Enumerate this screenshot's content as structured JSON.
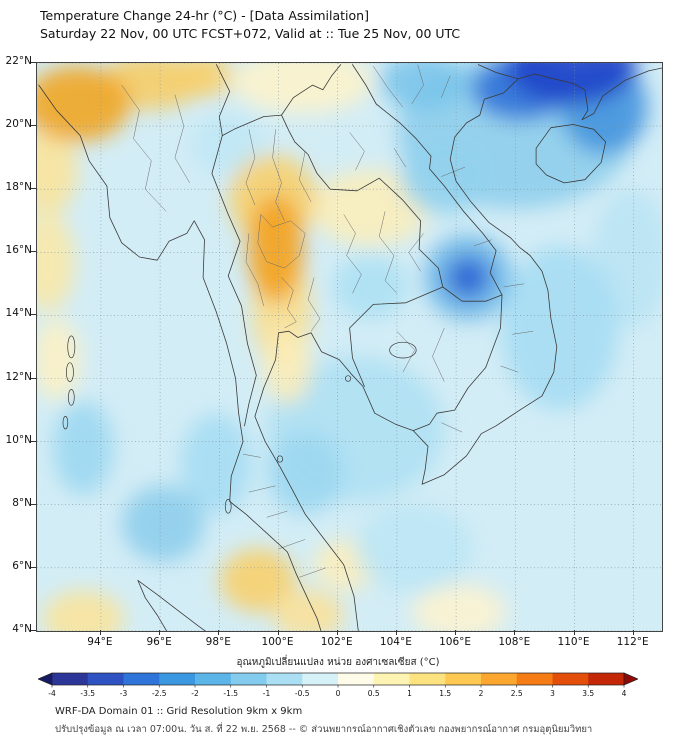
{
  "header": {
    "title": "Temperature Change 24-hr (°C) - [Data Assimilation]",
    "subtitle": "Saturday 22 Nov, 00 UTC FCST+072, Valid at :: Tue 25 Nov, 00 UTC"
  },
  "map": {
    "lat_tick_labels": [
      "22°N",
      "20°N",
      "18°N",
      "16°N",
      "14°N",
      "12°N",
      "10°N",
      "8°N",
      "6°N",
      "4°N"
    ],
    "lon_tick_labels": [
      "94°E",
      "96°E",
      "98°E",
      "100°E",
      "102°E",
      "104°E",
      "106°E",
      "108°E",
      "110°E",
      "112°E"
    ],
    "base_color": "#d3edf6",
    "anomalies": [
      {
        "lon": 100.8,
        "lat": 21.4,
        "rx": 2.4,
        "ry": 1.0,
        "color": "#fdf2cb"
      },
      {
        "lon": 103.1,
        "lat": 17.4,
        "rx": 2.0,
        "ry": 1.2,
        "color": "#fceeb9"
      },
      {
        "lon": 92.2,
        "lat": 18.6,
        "rx": 1.0,
        "ry": 1.4,
        "color": "#fbe49a"
      },
      {
        "lon": 92.2,
        "lat": 15.7,
        "rx": 0.9,
        "ry": 1.6,
        "color": "#fbe8a6"
      },
      {
        "lon": 92.5,
        "lat": 12.6,
        "rx": 0.8,
        "ry": 1.3,
        "color": "#fdf0c4"
      },
      {
        "lon": 93.4,
        "lat": 4.4,
        "rx": 1.4,
        "ry": 0.9,
        "color": "#fbe49a"
      },
      {
        "lon": 106.1,
        "lat": 4.6,
        "rx": 1.6,
        "ry": 0.9,
        "color": "#fdf3cf"
      },
      {
        "lon": 102.3,
        "lat": 6.1,
        "rx": 1.1,
        "ry": 0.8,
        "color": "#fdeeb9"
      },
      {
        "lon": 104.6,
        "lat": 6.6,
        "rx": 2.0,
        "ry": 1.4,
        "color": "#bce6f5"
      },
      {
        "lon": 111.9,
        "lat": 15.8,
        "rx": 1.3,
        "ry": 2.2,
        "color": "#b9e4f4"
      },
      {
        "lon": 102.6,
        "lat": 10.4,
        "rx": 3.0,
        "ry": 2.3,
        "color": "#aee0f3"
      },
      {
        "lon": 109.5,
        "lat": 13.6,
        "rx": 2.0,
        "ry": 2.6,
        "color": "#a5dcf2"
      },
      {
        "lon": 97.9,
        "lat": 9.3,
        "rx": 1.2,
        "ry": 1.6,
        "color": "#a5dcf2"
      },
      {
        "lon": 93.4,
        "lat": 9.8,
        "rx": 1.0,
        "ry": 1.5,
        "color": "#9bd7f0"
      },
      {
        "lon": 100.9,
        "lat": 9.0,
        "rx": 1.3,
        "ry": 1.3,
        "color": "#9bd7f0"
      },
      {
        "lon": 96.1,
        "lat": 7.4,
        "rx": 1.4,
        "ry": 1.2,
        "color": "#8ccdec"
      },
      {
        "lon": 98.3,
        "lat": 19.4,
        "rx": 1.3,
        "ry": 1.0,
        "color": "#bfe7f5"
      },
      {
        "lon": 108.0,
        "lat": 19.8,
        "rx": 4.0,
        "ry": 2.4,
        "color": "#8ccdec"
      },
      {
        "lon": 105.6,
        "lat": 18.4,
        "rx": 1.5,
        "ry": 1.2,
        "color": "#93d2ee"
      },
      {
        "lon": 103.1,
        "lat": 14.9,
        "rx": 1.3,
        "ry": 1.0,
        "color": "#ace0f3"
      },
      {
        "lon": 104.9,
        "lat": 21.4,
        "rx": 1.5,
        "ry": 0.9,
        "color": "#79c4ea"
      },
      {
        "lon": 111.0,
        "lat": 20.6,
        "rx": 1.5,
        "ry": 1.5,
        "color": "#4394de"
      },
      {
        "lon": 108.2,
        "lat": 21.2,
        "rx": 1.7,
        "ry": 1.0,
        "color": "#2f6fd8"
      },
      {
        "lon": 109.9,
        "lat": 21.9,
        "rx": 2.2,
        "ry": 1.2,
        "color": "#1e41c8"
      },
      {
        "lon": 106.4,
        "lat": 15.2,
        "rx": 1.5,
        "ry": 1.35,
        "color": "#6cb6e7"
      },
      {
        "lon": 106.4,
        "lat": 15.2,
        "rx": 0.75,
        "ry": 0.65,
        "color": "#2a63d4"
      },
      {
        "lon": 95.7,
        "lat": 21.4,
        "rx": 1.7,
        "ry": 0.9,
        "color": "#f7cc63"
      },
      {
        "lon": 93.2,
        "lat": 20.7,
        "rx": 1.8,
        "ry": 1.2,
        "color": "#f0a41f"
      },
      {
        "lon": 97.5,
        "lat": 21.6,
        "rx": 0.9,
        "ry": 0.7,
        "color": "#f8cf6a"
      },
      {
        "lon": 99.8,
        "lat": 17.7,
        "rx": 1.5,
        "ry": 1.4,
        "color": "#f8cf6a"
      },
      {
        "lon": 100.1,
        "lat": 14.2,
        "rx": 1.0,
        "ry": 1.9,
        "color": "#fade8d"
      },
      {
        "lon": 100.3,
        "lat": 12.4,
        "rx": 0.8,
        "ry": 1.2,
        "color": "#fcedb7"
      },
      {
        "lon": 99.9,
        "lat": 16.1,
        "rx": 0.95,
        "ry": 1.7,
        "color": "#f3a01c"
      },
      {
        "lon": 99.3,
        "lat": 5.6,
        "rx": 1.3,
        "ry": 1.0,
        "color": "#f8cf6a"
      },
      {
        "lon": 101.0,
        "lat": 4.5,
        "rx": 1.2,
        "ry": 0.8,
        "color": "#fbe096"
      }
    ]
  },
  "colorbar": {
    "label": "อุณหภูมิเปลี่ยนแปลง หน่วย องศาเซลเซียส (°C)",
    "units": "°C",
    "range": [
      -4,
      4
    ],
    "tick_labels": [
      "-4",
      "-3.5",
      "-3",
      "-2.5",
      "-2",
      "-1.5",
      "-1",
      "-0.5",
      "0",
      "0.5",
      "1",
      "1.5",
      "2",
      "2.5",
      "3",
      "3.5",
      "4"
    ],
    "cells": [
      "#2c3699",
      "#2f52c3",
      "#2f74d8",
      "#3b97e0",
      "#5cb5e8",
      "#83ccee",
      "#abdff3",
      "#d7f1f8",
      "#fefce8",
      "#fdf3b3",
      "#fde380",
      "#fdc952",
      "#fba62e",
      "#f57c14",
      "#e34f0a",
      "#c42608"
    ],
    "arrow_left": "#151a66",
    "arrow_right": "#8f0a05"
  },
  "footer": {
    "line1": "WRF-DA Domain 01 :: Grid Resolution 9km x 9km",
    "line2": "ปรับปรุงข้อมูล ณ เวลา 07:00น. วัน ส. ที่ 22 พ.ย. 2568 -- © ส่วนพยากรณ์อากาศเชิงตัวเลข กองพยากรณ์อากาศ กรมอุตุนิยมวิทยา"
  }
}
